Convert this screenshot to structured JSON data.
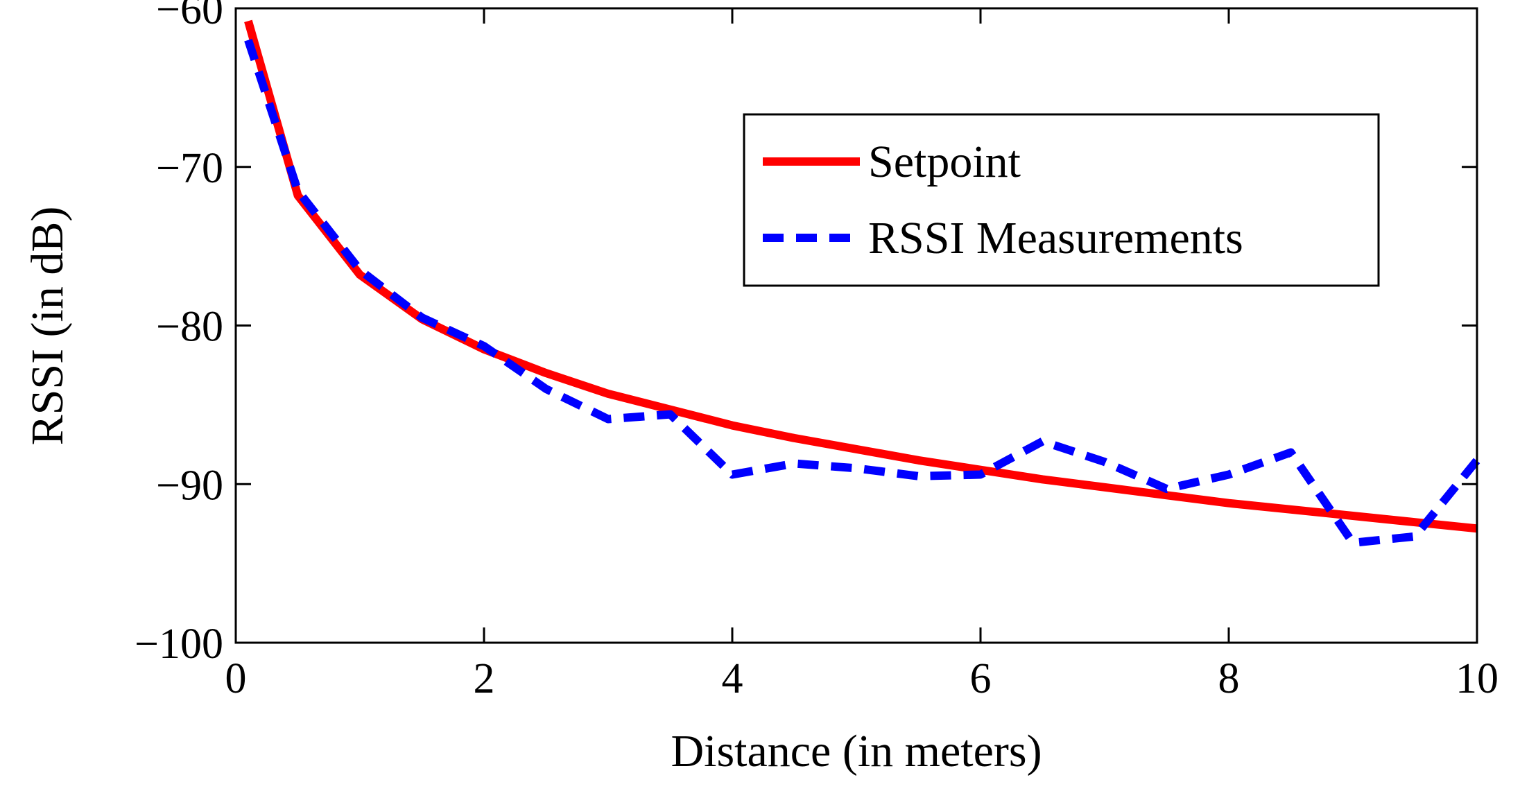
{
  "chart_data": {
    "type": "line",
    "title": "",
    "xlabel": "Distance (in meters)",
    "ylabel": "RSSI (in dB)",
    "xlim": [
      0,
      10
    ],
    "ylim": [
      -100,
      -60
    ],
    "xticks": [
      0,
      2,
      4,
      6,
      8,
      10
    ],
    "yticks": [
      -100,
      -90,
      -80,
      -70,
      -60
    ],
    "xtick_labels": [
      "0",
      "2",
      "4",
      "6",
      "8",
      "10"
    ],
    "ytick_labels": [
      "−100",
      "−90",
      "−80",
      "−70",
      "−60"
    ],
    "grid": false,
    "legend_position": "top-right",
    "series": [
      {
        "name": "Setpoint",
        "color": "#ff0000",
        "style": "solid",
        "x": [
          0.1,
          0.5,
          1.0,
          1.5,
          2.0,
          2.5,
          3.0,
          3.5,
          4.0,
          4.5,
          5.0,
          5.5,
          6.0,
          6.5,
          7.0,
          7.5,
          8.0,
          8.5,
          9.0,
          9.5,
          10.0
        ],
        "y": [
          -60.8,
          -71.8,
          -76.8,
          -79.6,
          -81.5,
          -83.0,
          -84.3,
          -85.3,
          -86.3,
          -87.1,
          -87.8,
          -88.5,
          -89.1,
          -89.7,
          -90.2,
          -90.7,
          -91.2,
          -91.6,
          -92.0,
          -92.4,
          -92.8
        ]
      },
      {
        "name": "RSSI Measurements",
        "color": "#0000ff",
        "style": "dashed",
        "x": [
          0.1,
          0.5,
          1.0,
          1.5,
          2.0,
          2.5,
          3.0,
          3.5,
          4.0,
          4.5,
          5.0,
          5.5,
          6.0,
          6.5,
          7.0,
          7.5,
          8.0,
          8.5,
          9.0,
          9.5,
          10.0
        ],
        "y": [
          -62.0,
          -71.5,
          -76.5,
          -79.5,
          -81.3,
          -84.0,
          -85.9,
          -85.6,
          -89.4,
          -88.7,
          -89.0,
          -89.5,
          -89.4,
          -87.3,
          -88.6,
          -90.3,
          -89.4,
          -88.0,
          -93.7,
          -93.3,
          -88.5
        ]
      }
    ]
  }
}
